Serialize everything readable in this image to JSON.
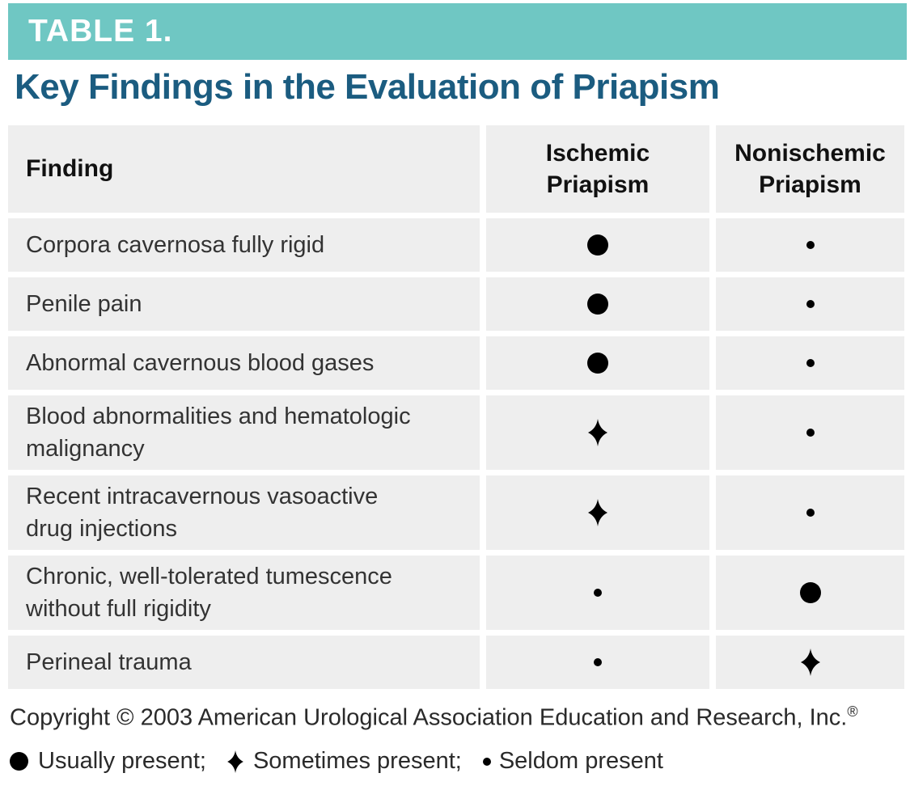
{
  "header": {
    "table_label": "TABLE 1.",
    "title": "Key Findings in the Evaluation of Priapism"
  },
  "table": {
    "columns": [
      {
        "label": "Finding"
      },
      {
        "label": "Ischemic\nPriapism"
      },
      {
        "label": "Nonischemic\nPriapism"
      }
    ],
    "rows": [
      {
        "finding": "Corpora cavernosa fully rigid",
        "ischemic": "usually",
        "nonischemic": "seldom"
      },
      {
        "finding": "Penile pain",
        "ischemic": "usually",
        "nonischemic": "seldom"
      },
      {
        "finding": "Abnormal cavernous blood gases",
        "ischemic": "usually",
        "nonischemic": "seldom"
      },
      {
        "finding": "Blood abnormalities and hematologic\nmalignancy",
        "ischemic": "sometimes",
        "nonischemic": "seldom"
      },
      {
        "finding": "Recent intracavernous vasoactive\ndrug injections",
        "ischemic": "sometimes",
        "nonischemic": "seldom"
      },
      {
        "finding": "Chronic, well-tolerated tumescence\nwithout full rigidity",
        "ischemic": "seldom",
        "nonischemic": "usually"
      },
      {
        "finding": "Perineal trauma",
        "ischemic": "seldom",
        "nonischemic": "sometimes"
      }
    ],
    "symbols": {
      "usually": "large-dot",
      "sometimes": "four-pointed-star",
      "seldom": "small-dot"
    }
  },
  "footer": {
    "copyright_text": "Copyright © 2003 American Urological Association Education and Research, Inc.",
    "copyright_mark": "®",
    "legend": [
      {
        "symbol": "usually",
        "label": "Usually present;"
      },
      {
        "symbol": "sometimes",
        "label": "Sometimes present;"
      },
      {
        "symbol": "seldom",
        "label": "Seldom present"
      }
    ]
  },
  "colors": {
    "teal_bar": "#6fc7c3",
    "title_blue": "#1b5c80",
    "row_background": "#eeeeee",
    "symbol_black": "#000000"
  }
}
